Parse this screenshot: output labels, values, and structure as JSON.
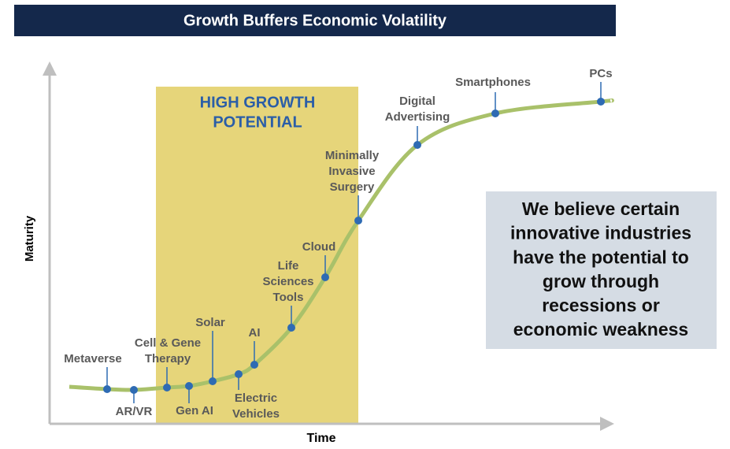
{
  "title": "Growth Buffers Economic Volatility",
  "axes": {
    "y": "Maturity",
    "x": "Time"
  },
  "highlight": [
    "HIGH GROWTH",
    "POTENTIAL"
  ],
  "points": [
    {
      "label": [
        "Metaverse"
      ]
    },
    {
      "label": [
        "AR/VR"
      ]
    },
    {
      "label": [
        "Cell & Gene",
        "Therapy"
      ]
    },
    {
      "label": [
        "Gen AI"
      ]
    },
    {
      "label": [
        "Solar"
      ]
    },
    {
      "label": [
        "Electric",
        "Vehicles"
      ]
    },
    {
      "label": [
        "AI"
      ]
    },
    {
      "label": [
        "Life",
        "Sciences",
        "Tools"
      ]
    },
    {
      "label": [
        "Cloud"
      ]
    },
    {
      "label": [
        "Minimally",
        "Invasive",
        "Surgery"
      ]
    },
    {
      "label": [
        "Digital",
        "Advertising"
      ]
    },
    {
      "label": [
        "Smartphones"
      ]
    },
    {
      "label": [
        "PCs"
      ]
    }
  ],
  "callout": [
    "We believe certain",
    "innovative industries",
    "have the potential to",
    "grow through",
    "recessions or",
    "economic weakness"
  ]
}
